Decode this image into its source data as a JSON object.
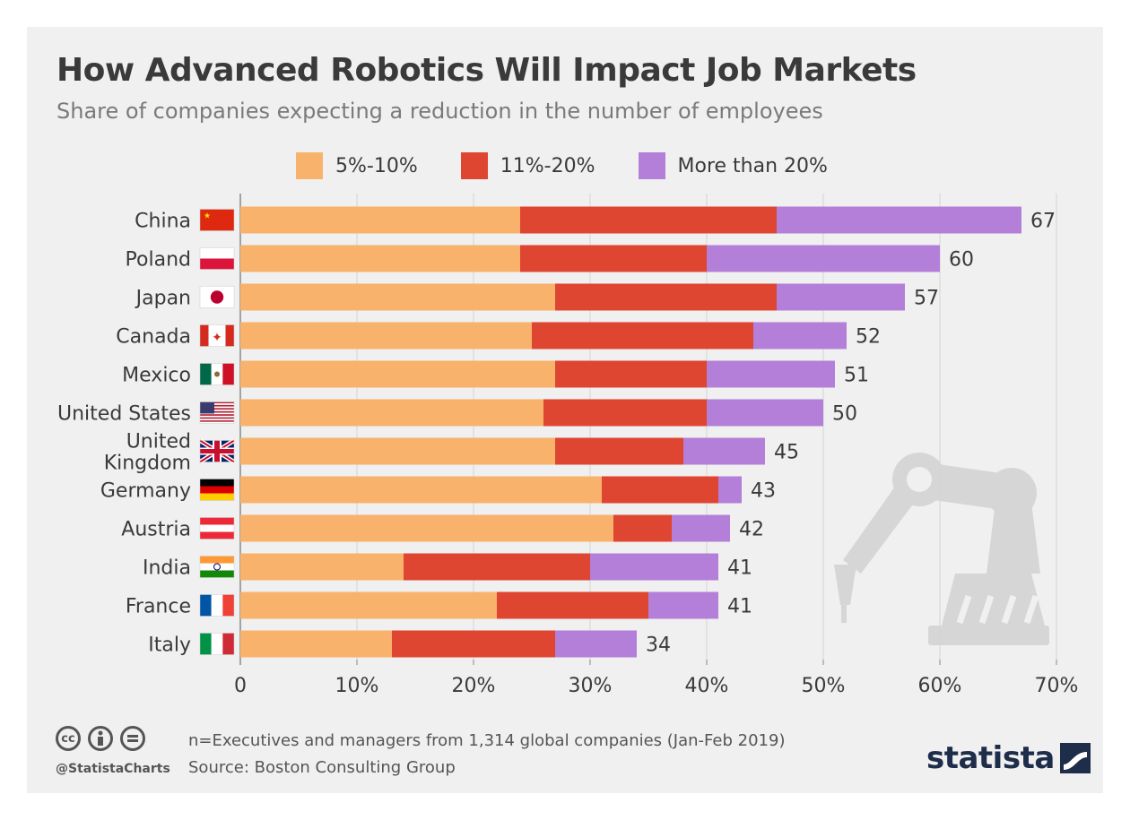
{
  "header": {
    "title": "How Advanced Robotics Will Impact Job Markets",
    "subtitle": "Share of companies expecting a reduction in the number of employees"
  },
  "footer": {
    "note": "n=Executives and managers from 1,314 global companies (Jan-Feb 2019)",
    "source": "Source: Boston Consulting Group",
    "handle": "@StatistaCharts",
    "brand": "statista",
    "cc_icons": [
      "cc-icon",
      "by-icon",
      "nd-icon"
    ]
  },
  "colors": {
    "series_5_10": "#f9b26b",
    "series_11_20": "#de4631",
    "series_20_plus": "#b47fd9",
    "text": "#3a3a3a",
    "background": "#f0f0f0"
  },
  "chart_data": {
    "type": "bar",
    "orientation": "horizontal",
    "stacked": true,
    "categories": [
      "China",
      "Poland",
      "Japan",
      "Canada",
      "Mexico",
      "United States",
      "United Kingdom",
      "Germany",
      "Austria",
      "India",
      "France",
      "Italy"
    ],
    "flags": [
      "china-flag-icon",
      "poland-flag-icon",
      "japan-flag-icon",
      "canada-flag-icon",
      "mexico-flag-icon",
      "usa-flag-icon",
      "uk-flag-icon",
      "germany-flag-icon",
      "austria-flag-icon",
      "india-flag-icon",
      "france-flag-icon",
      "italy-flag-icon"
    ],
    "series": [
      {
        "name": "5%-10%",
        "values": [
          24,
          24,
          27,
          25,
          27,
          26,
          27,
          31,
          32,
          14,
          22,
          13
        ]
      },
      {
        "name": "11%-20%",
        "values": [
          22,
          16,
          19,
          19,
          13,
          14,
          11,
          10,
          5,
          16,
          13,
          14
        ]
      },
      {
        "name": "More than 20%",
        "values": [
          21,
          20,
          11,
          8,
          11,
          10,
          7,
          2,
          5,
          11,
          6,
          7
        ]
      }
    ],
    "totals": [
      67,
      60,
      57,
      52,
      51,
      50,
      45,
      43,
      42,
      41,
      41,
      34
    ],
    "xlim": [
      0,
      70
    ],
    "xticks": [
      "0",
      "10%",
      "20%",
      "30%",
      "40%",
      "50%",
      "60%",
      "70%"
    ],
    "grid": true,
    "legend_position": "top"
  }
}
